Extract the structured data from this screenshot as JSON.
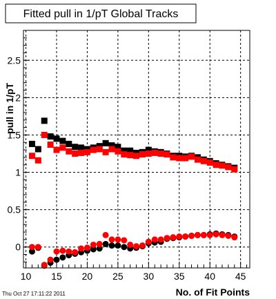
{
  "chart_data": {
    "type": "scatter",
    "title": "Fitted pull in 1/pT  Global Tracks",
    "xlabel": "No. of Fit Points",
    "ylabel": "pull in 1/pT",
    "xlim": [
      9.6,
      46.5
    ],
    "ylim": [
      -0.28,
      2.9
    ],
    "xticks": [
      10,
      15,
      20,
      25,
      30,
      35,
      40,
      45
    ],
    "xtick_labels": [
      "10",
      "15",
      "20",
      "25",
      "30",
      "35",
      "40",
      "45"
    ],
    "yticks": [
      0,
      0.5,
      1,
      1.5,
      2,
      2.5
    ],
    "ytick_labels": [
      "0",
      "0.5",
      "1",
      "1.5",
      "2",
      "2.5"
    ],
    "grid": true,
    "timestamp": "Thu Oct 27 17:11:22 2011",
    "series": [
      {
        "marker": "square",
        "color": "#000000",
        "x": [
          11,
          12,
          13,
          14,
          15,
          16,
          17,
          18,
          19,
          20,
          21,
          22,
          23,
          24,
          25,
          26,
          27,
          28,
          29,
          30,
          31,
          32,
          33,
          34,
          35,
          36,
          37,
          38,
          39,
          40,
          41,
          42,
          43,
          44
        ],
        "values": [
          1.38,
          1.31,
          1.69,
          1.48,
          1.45,
          1.42,
          1.38,
          1.34,
          1.33,
          1.31,
          1.33,
          1.35,
          1.39,
          1.36,
          1.34,
          1.29,
          1.29,
          1.26,
          1.27,
          1.3,
          1.28,
          1.27,
          1.25,
          1.22,
          1.22,
          1.21,
          1.22,
          1.2,
          1.17,
          1.15,
          1.12,
          1.1,
          1.08,
          1.06
        ]
      },
      {
        "marker": "square",
        "color": "#ff0000",
        "x": [
          11,
          12,
          13,
          14,
          15,
          16,
          17,
          18,
          19,
          20,
          21,
          22,
          23,
          24,
          25,
          26,
          27,
          28,
          29,
          30,
          31,
          32,
          33,
          34,
          35,
          36,
          37,
          38,
          39,
          40,
          41,
          42,
          43,
          44
        ],
        "values": [
          1.22,
          1.16,
          1.5,
          1.37,
          1.3,
          1.33,
          1.28,
          1.25,
          1.26,
          1.27,
          1.3,
          1.31,
          1.27,
          1.31,
          1.28,
          1.24,
          1.23,
          1.22,
          1.24,
          1.25,
          1.26,
          1.25,
          1.24,
          1.2,
          1.19,
          1.19,
          1.21,
          1.17,
          1.15,
          1.13,
          1.1,
          1.09,
          1.07,
          1.04
        ]
      },
      {
        "marker": "circle",
        "color": "#000000",
        "x": [
          11,
          12,
          13,
          14,
          15,
          16,
          17,
          18,
          19,
          20,
          21,
          22,
          23,
          24,
          25,
          26,
          27,
          28,
          29,
          30,
          31,
          32,
          33,
          34,
          35,
          36,
          37,
          38,
          39,
          40,
          41,
          42,
          43,
          44
        ],
        "values": [
          -0.06,
          -0.01,
          -0.25,
          -0.21,
          -0.17,
          -0.14,
          -0.11,
          -0.09,
          -0.07,
          -0.05,
          -0.03,
          -0.02,
          0.04,
          0.02,
          0.02,
          0,
          -0.02,
          -0.01,
          0.01,
          0.05,
          0.06,
          0.07,
          0.11,
          0.12,
          0.13,
          0.14,
          0.15,
          0.16,
          0.16,
          0.17,
          0.18,
          0.17,
          0.16,
          0.14
        ]
      },
      {
        "marker": "circle",
        "color": "#ff0000",
        "x": [
          11,
          12,
          13,
          14,
          15,
          16,
          17,
          18,
          19,
          20,
          21,
          22,
          23,
          24,
          25,
          26,
          27,
          28,
          29,
          30,
          31,
          32,
          33,
          34,
          35,
          36,
          37,
          38,
          39,
          40,
          41,
          42,
          43,
          44
        ],
        "values": [
          0,
          0,
          -0.24,
          -0.17,
          -0.06,
          -0.05,
          -0.06,
          -0.07,
          -0.02,
          -0.01,
          0.03,
          0.04,
          0.16,
          0.1,
          0.1,
          0.09,
          0.03,
          0.01,
          0.02,
          0.07,
          0.1,
          0.1,
          0.12,
          0.13,
          0.14,
          0.14,
          0.15,
          0.16,
          0.16,
          0.16,
          0.17,
          0.16,
          0.15,
          0.13
        ]
      }
    ]
  }
}
